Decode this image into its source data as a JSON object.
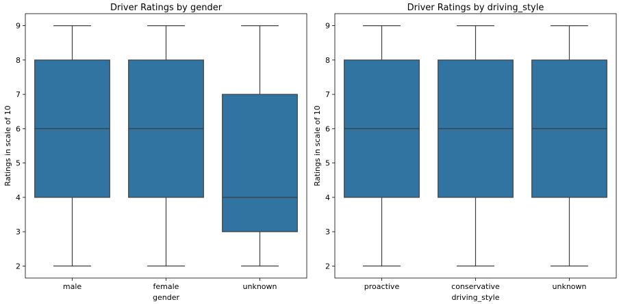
{
  "chart_data": [
    {
      "type": "box",
      "title": "Driver Ratings by gender",
      "xlabel": "gender",
      "ylabel": "Ratings in scale of 10",
      "ylim": [
        1.65,
        9.35
      ],
      "yticks": [
        2,
        3,
        4,
        5,
        6,
        7,
        8,
        9
      ],
      "categories": [
        "male",
        "female",
        "unknown"
      ],
      "boxes": [
        {
          "whisker_low": 2,
          "q1": 4,
          "median": 6,
          "q3": 8,
          "whisker_high": 9
        },
        {
          "whisker_low": 2,
          "q1": 4,
          "median": 6,
          "q3": 8,
          "whisker_high": 9
        },
        {
          "whisker_low": 2,
          "q1": 3,
          "median": 4,
          "q3": 7,
          "whisker_high": 9
        }
      ],
      "color": "#3274a1",
      "line_color": "#3f3f3f",
      "grid": false,
      "legend": "none"
    },
    {
      "type": "box",
      "title": "Driver Ratings by driving_style",
      "xlabel": "driving_style",
      "ylabel": "Ratings in scale of 10",
      "ylim": [
        1.65,
        9.35
      ],
      "yticks": [
        2,
        3,
        4,
        5,
        6,
        7,
        8,
        9
      ],
      "categories": [
        "proactive",
        "conservative",
        "unknown"
      ],
      "boxes": [
        {
          "whisker_low": 2,
          "q1": 4,
          "median": 6,
          "q3": 8,
          "whisker_high": 9
        },
        {
          "whisker_low": 2,
          "q1": 4,
          "median": 6,
          "q3": 8,
          "whisker_high": 9
        },
        {
          "whisker_low": 2,
          "q1": 4,
          "median": 6,
          "q3": 8,
          "whisker_high": 9
        }
      ],
      "color": "#3274a1",
      "line_color": "#3f3f3f",
      "grid": false,
      "legend": "none"
    }
  ]
}
